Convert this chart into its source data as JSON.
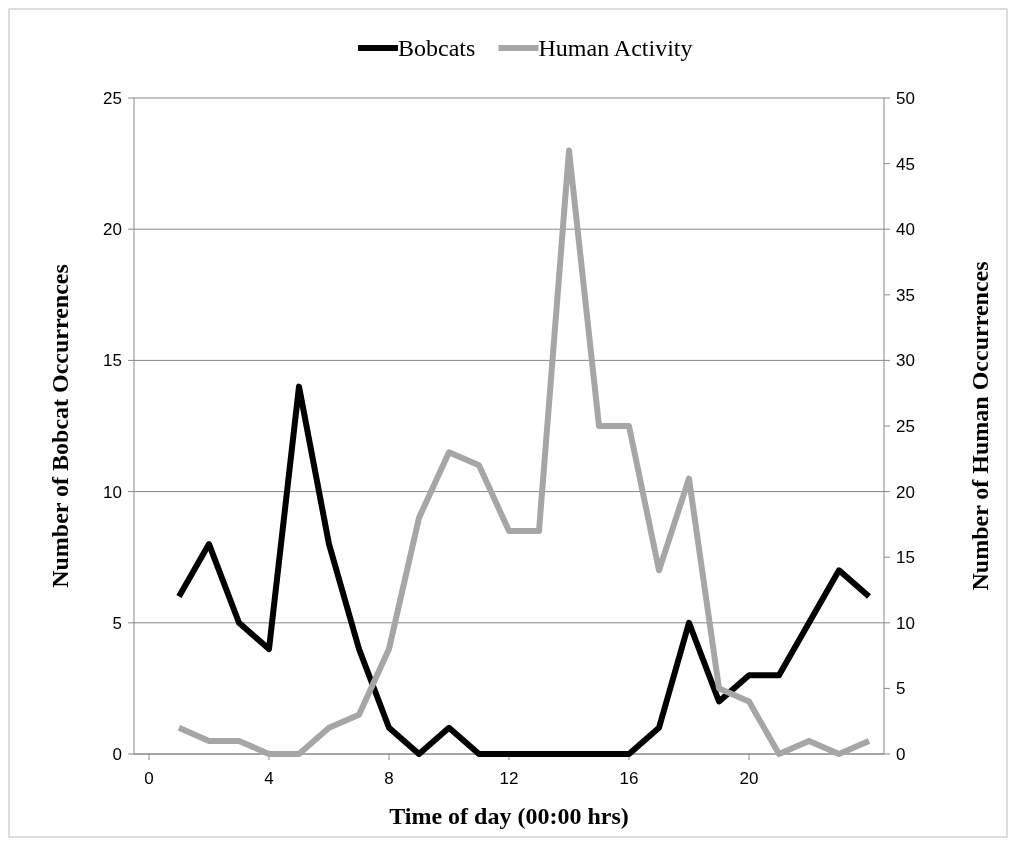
{
  "chart_data": {
    "type": "line",
    "xlabel": "Time of day (00:00 hrs)",
    "ylabel": "Number of Bobcat Occurrences",
    "y2label": "Number of Human Occurrences",
    "x": [
      1,
      2,
      3,
      4,
      5,
      6,
      7,
      8,
      9,
      10,
      11,
      12,
      13,
      14,
      15,
      16,
      17,
      18,
      19,
      20,
      21,
      22,
      23,
      24
    ],
    "xlim": [
      -0.5,
      24.5
    ],
    "xticks": [
      0,
      4,
      8,
      12,
      16,
      20
    ],
    "ylim": [
      0,
      25
    ],
    "yticks": [
      0,
      5,
      10,
      15,
      20,
      25
    ],
    "y2lim": [
      0,
      50
    ],
    "y2ticks": [
      0,
      5,
      10,
      15,
      20,
      25,
      30,
      35,
      40,
      45,
      50
    ],
    "grid": "y",
    "legend": "top",
    "marker": "none",
    "line_style": "solid",
    "series": [
      {
        "name": "Bobcats",
        "color": "#000000",
        "values": [
          6,
          8,
          5,
          4,
          14,
          8,
          4,
          1,
          0,
          1,
          0,
          0,
          0,
          0,
          0,
          0,
          1,
          5,
          2,
          3,
          3,
          5,
          7,
          6
        ]
      },
      {
        "name": "Human Activity",
        "color": "#a6a6a6",
        "axis": "y2",
        "values": [
          2,
          1,
          1,
          0,
          0,
          2,
          3,
          8,
          18,
          23,
          22,
          17,
          17,
          46,
          25,
          25,
          14,
          21,
          5,
          4,
          0,
          1,
          0,
          1
        ]
      }
    ]
  }
}
